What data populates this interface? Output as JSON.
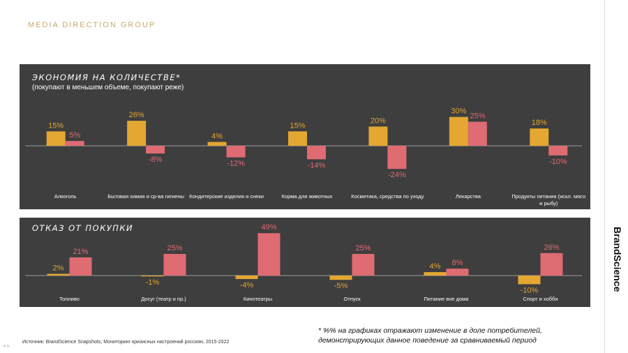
{
  "header": {
    "brand": "MEDIA DIRECTION GROUP"
  },
  "side_brand": "BrandScience",
  "source": "Источник: BrandScience Snapshots, Мониторинг кризисных настроений россиян, 2015-2022",
  "footnote": {
    "line1": "* %% на графиках отражают изменение в доле потребителей,",
    "line2": "демонстрирующих данное поведение за сравниваемый период"
  },
  "colors": {
    "series_a": "#e3a732",
    "series_b": "#df6b73",
    "panel_bg": "#3e3e3e",
    "label_a": "#e3a732",
    "label_b": "#df6b73"
  },
  "chart_data": [
    {
      "type": "bar",
      "title": "ЭКОНОМИЯ НА КОЛИЧЕСТВЕ*",
      "subtitle": "(покупают в меньшем объеме, покупают реже)",
      "categories": [
        "Алкоголь",
        "Бытовая химия и ср-ва гигиены",
        "Кондитерские изделия и снеки",
        "Корма для животных",
        "Косметика, средства по уходу",
        "Лекарства",
        "Продукты питания (искл. мясо и рыбу)"
      ],
      "series": [
        {
          "values": [
            15,
            26,
            4,
            15,
            20,
            30,
            18
          ],
          "labels": [
            "15%",
            "26%",
            "4%",
            "15%",
            "20%",
            "30%",
            "18%"
          ]
        },
        {
          "values": [
            5,
            -8,
            -12,
            -14,
            -24,
            25,
            -10
          ],
          "labels": [
            "5%",
            "-8%",
            "-12%",
            "-14%",
            "-24%",
            "25%",
            "-10%"
          ]
        }
      ],
      "grid": false
    },
    {
      "type": "bar",
      "title": "ОТКАЗ ОТ ПОКУПКИ",
      "categories": [
        "Топливо",
        "Досуг (театр и пр.)",
        "Кинотеатры",
        "Отпуск",
        "Питание вне дома",
        "Спорт и хобби"
      ],
      "series": [
        {
          "values": [
            2,
            -1,
            -4,
            -5,
            4,
            -10
          ],
          "labels": [
            "2%",
            "-1%",
            "-4%",
            "-5%",
            "4%",
            "-10%"
          ]
        },
        {
          "values": [
            21,
            25,
            49,
            25,
            8,
            26
          ],
          "labels": [
            "21%",
            "25%",
            "49%",
            "25%",
            "8%",
            "26%"
          ]
        }
      ],
      "grid": false
    }
  ]
}
